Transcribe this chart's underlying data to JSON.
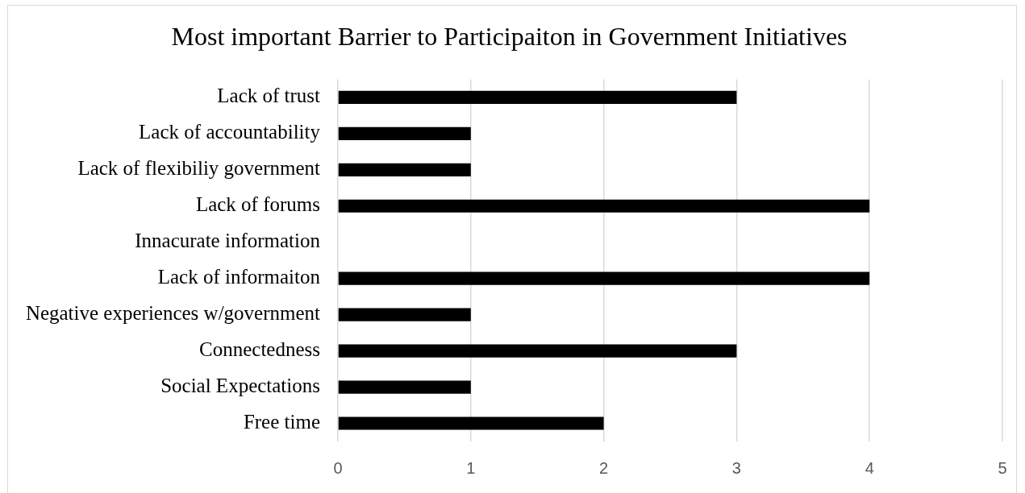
{
  "chart_data": {
    "type": "bar",
    "orientation": "horizontal",
    "title": "Most important Barrier to Participaiton in Government Initiatives",
    "categories": [
      "Lack of trust",
      "Lack of accountability",
      "Lack of flexibiliy government",
      "Lack of forums",
      "Innacurate information",
      "Lack of informaiton",
      "Negative experiences w/government",
      "Connectedness",
      "Social Expectations",
      "Free time"
    ],
    "values": [
      3,
      1,
      1,
      4,
      0,
      4,
      1,
      3,
      1,
      2
    ],
    "color": "#000000",
    "xlim": [
      0,
      5
    ],
    "xticks": [
      0,
      1,
      2,
      3,
      4,
      5
    ],
    "grid": "x"
  }
}
